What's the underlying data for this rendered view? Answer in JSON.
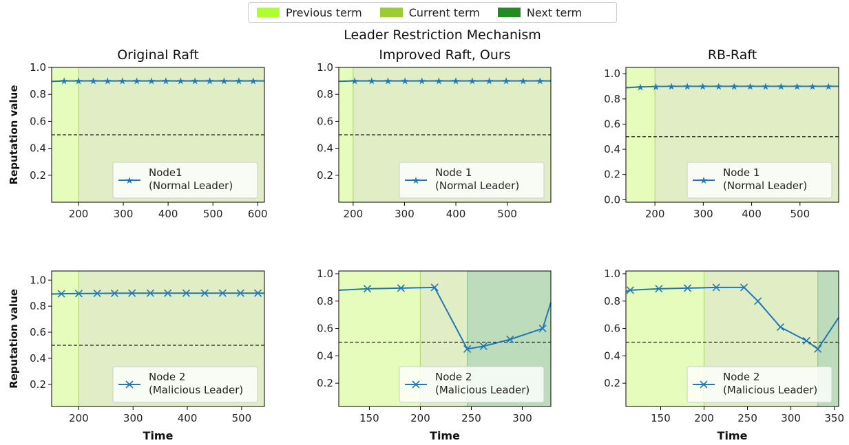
{
  "legend": {
    "items": [
      {
        "label": "Previous term",
        "color": "#adff2f"
      },
      {
        "label": "Current term",
        "color": "#9acd32"
      },
      {
        "label": "Next term",
        "color": "#228b22"
      }
    ]
  },
  "figure_title": "Leader Restriction Mechanism",
  "chart_data": [
    {
      "type": "line",
      "column_title": "Original Raft",
      "ylabel": "Reputation value",
      "xlabel": "",
      "xlim": [
        140,
        615
      ],
      "ylim": [
        0.0,
        1.0
      ],
      "yticks": [
        0.2,
        0.4,
        0.6,
        0.8,
        1.0
      ],
      "xticks": [
        200,
        300,
        400,
        500,
        600
      ],
      "threshold": 0.5,
      "regions": [
        {
          "term": "Previous term",
          "from": 140,
          "to": 200
        },
        {
          "term": "Current term",
          "from": 200,
          "to": 615
        }
      ],
      "series": [
        {
          "name": "Node1\n(Normal Leader)",
          "marker": "star",
          "x": [
            140,
            168,
            200,
            233,
            265,
            298,
            330,
            363,
            395,
            428,
            460,
            493,
            525,
            558,
            590,
            615
          ],
          "y": [
            0.896,
            0.9,
            0.9,
            0.9,
            0.9,
            0.9,
            0.9,
            0.9,
            0.9,
            0.9,
            0.9,
            0.9,
            0.9,
            0.9,
            0.9,
            0.9
          ],
          "marker_from": 1,
          "marker_to": 14
        }
      ]
    },
    {
      "type": "line",
      "column_title": "Improved Raft, Ours",
      "ylabel": "",
      "xlabel": "",
      "xlim": [
        172,
        585
      ],
      "ylim": [
        0.0,
        1.0
      ],
      "yticks": [
        0.2,
        0.4,
        0.6,
        0.8,
        1.0
      ],
      "xticks": [
        200,
        300,
        400,
        500
      ],
      "threshold": 0.5,
      "regions": [
        {
          "term": "Previous term",
          "from": 172,
          "to": 200
        },
        {
          "term": "Current term",
          "from": 200,
          "to": 585
        }
      ],
      "series": [
        {
          "name": "Node 1\n(Normal Leader)",
          "marker": "star",
          "x": [
            172,
            203,
            236,
            268,
            301,
            334,
            367,
            400,
            432,
            465,
            498,
            531,
            564,
            585
          ],
          "y": [
            0.897,
            0.9,
            0.9,
            0.9,
            0.9,
            0.9,
            0.9,
            0.9,
            0.9,
            0.9,
            0.9,
            0.9,
            0.9,
            0.9
          ],
          "marker_from": 1,
          "marker_to": 12
        }
      ]
    },
    {
      "type": "line",
      "column_title": "RB-Raft",
      "ylabel": "",
      "xlabel": "",
      "xlim": [
        140,
        580
      ],
      "ylim": [
        -0.02,
        1.05
      ],
      "yticks": [
        0.0,
        0.2,
        0.4,
        0.6,
        0.8,
        1.0
      ],
      "xticks": [
        200,
        300,
        400,
        500
      ],
      "threshold": 0.5,
      "regions": [
        {
          "term": "Previous term",
          "from": 140,
          "to": 200
        },
        {
          "term": "Current term",
          "from": 200,
          "to": 580
        }
      ],
      "series": [
        {
          "name": "Node 1\n(Normal Leader)",
          "marker": "star",
          "x": [
            140,
            170,
            202,
            234,
            267,
            299,
            332,
            364,
            397,
            429,
            461,
            494,
            526,
            559,
            580
          ],
          "y": [
            0.889,
            0.895,
            0.898,
            0.9,
            0.9,
            0.9,
            0.9,
            0.9,
            0.9,
            0.9,
            0.9,
            0.9,
            0.9,
            0.9,
            0.9
          ],
          "marker_from": 1,
          "marker_to": 13
        }
      ]
    },
    {
      "type": "line",
      "column_title": "",
      "ylabel": "Reputation value",
      "xlabel": "Time",
      "xlim": [
        150,
        542
      ],
      "ylim": [
        0.03,
        1.07
      ],
      "yticks": [
        0.2,
        0.4,
        0.6,
        0.8,
        1.0
      ],
      "xticks": [
        200,
        300,
        400,
        500
      ],
      "threshold": 0.5,
      "regions": [
        {
          "term": "Previous term",
          "from": 150,
          "to": 200
        },
        {
          "term": "Current term",
          "from": 200,
          "to": 542
        }
      ],
      "series": [
        {
          "name": "Node 2\n(Malicious Leader)",
          "marker": "x",
          "x": [
            150,
            168,
            200,
            234,
            266,
            298,
            332,
            364,
            398,
            432,
            465,
            498,
            530,
            542
          ],
          "y": [
            0.893,
            0.895,
            0.897,
            0.898,
            0.899,
            0.9,
            0.9,
            0.9,
            0.9,
            0.9,
            0.9,
            0.9,
            0.9,
            0.9
          ],
          "marker_from": 1,
          "marker_to": 12
        }
      ]
    },
    {
      "type": "line",
      "column_title": "",
      "ylabel": "",
      "xlabel": "Time",
      "xlim": [
        120,
        328
      ],
      "ylim": [
        0.03,
        1.02
      ],
      "yticks": [
        0.2,
        0.4,
        0.6,
        0.8,
        1.0
      ],
      "xticks": [
        150,
        200,
        250,
        300
      ],
      "threshold": 0.5,
      "regions": [
        {
          "term": "Previous term",
          "from": 120,
          "to": 200
        },
        {
          "term": "Current term",
          "from": 200,
          "to": 246
        },
        {
          "term": "Next term",
          "from": 246,
          "to": 328
        }
      ],
      "series": [
        {
          "name": "Node 2\n(Malicious Leader)",
          "marker": "x",
          "x": [
            120,
            148,
            181,
            214,
            246,
            262,
            288,
            320,
            328
          ],
          "y": [
            0.88,
            0.89,
            0.895,
            0.9,
            0.45,
            0.47,
            0.52,
            0.6,
            0.79
          ],
          "marker_from": 1,
          "marker_to": 7
        }
      ]
    },
    {
      "type": "line",
      "column_title": "",
      "ylabel": "",
      "xlabel": "Time",
      "xlim": [
        110,
        355
      ],
      "ylim": [
        0.03,
        1.02
      ],
      "yticks": [
        0.2,
        0.4,
        0.6,
        0.8,
        1.0
      ],
      "xticks": [
        150,
        200,
        250,
        300,
        350
      ],
      "threshold": 0.5,
      "regions": [
        {
          "term": "Previous term",
          "from": 110,
          "to": 200
        },
        {
          "term": "Current term",
          "from": 200,
          "to": 331
        },
        {
          "term": "Next term",
          "from": 331,
          "to": 355
        }
      ],
      "series": [
        {
          "name": "Node 2\n(Malicious Leader)",
          "marker": "x",
          "x": [
            110,
            115,
            148,
            181,
            214,
            246,
            262,
            288,
            318,
            331,
            355
          ],
          "y": [
            0.87,
            0.88,
            0.89,
            0.895,
            0.9,
            0.9,
            0.8,
            0.61,
            0.51,
            0.45,
            0.68
          ],
          "marker_from": 1,
          "marker_to": 9
        }
      ]
    }
  ]
}
